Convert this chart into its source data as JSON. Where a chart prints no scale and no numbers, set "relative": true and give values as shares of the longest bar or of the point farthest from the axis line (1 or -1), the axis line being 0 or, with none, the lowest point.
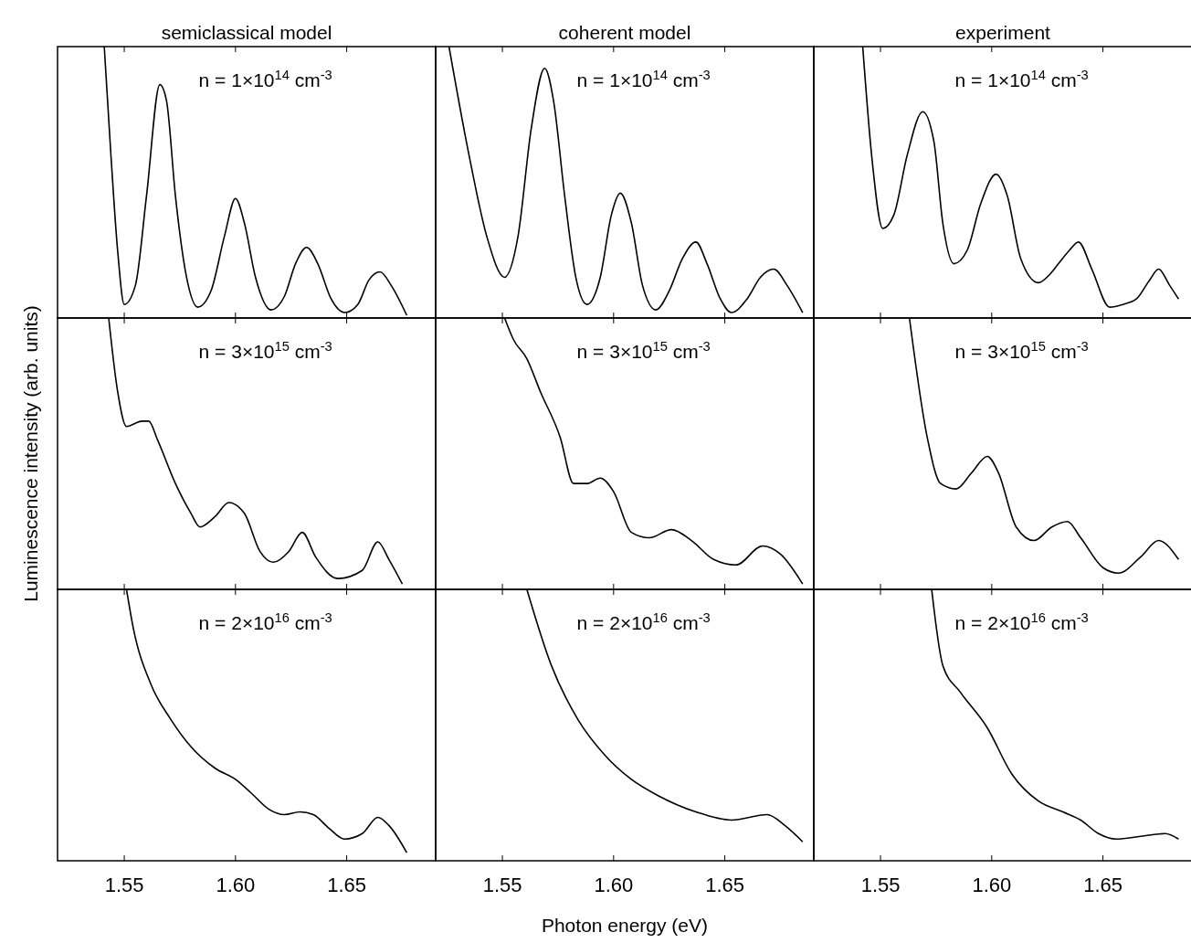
{
  "chart_data": [
    {
      "type": "line",
      "title": "semiclassical model",
      "relative": true,
      "xlim": [
        1.52,
        1.69
      ],
      "xticks": [
        {
          "value": 1.55,
          "label": null
        },
        {
          "value": 1.6,
          "label": null
        },
        {
          "value": 1.65,
          "label": null
        }
      ],
      "tick_labels": false,
      "annotations": [
        "n = 1×10$^{14}$ cm$^{-3}$"
      ],
      "series": [
        {
          "color": "#000000",
          "x": [
            1.541,
            1.544,
            1.547,
            1.55,
            1.555,
            1.56,
            1.566,
            1.569,
            1.573,
            1.578,
            1.583,
            1.589,
            1.595,
            1.6,
            1.604,
            1.609,
            1.616,
            1.622,
            1.627,
            1.632,
            1.637,
            1.643,
            1.649,
            1.655,
            1.66,
            1.665,
            1.67,
            1.677
          ],
          "values": [
            1.0,
            0.6,
            0.25,
            0.05,
            0.12,
            0.45,
            0.86,
            0.8,
            0.45,
            0.15,
            0.04,
            0.1,
            0.3,
            0.44,
            0.35,
            0.15,
            0.03,
            0.08,
            0.2,
            0.26,
            0.2,
            0.07,
            0.02,
            0.05,
            0.14,
            0.17,
            0.12,
            0.01
          ]
        }
      ]
    },
    {
      "type": "line",
      "title": "coherent model",
      "relative": true,
      "xlim": [
        1.52,
        1.69
      ],
      "xticks": [
        {
          "value": 1.55,
          "label": null
        },
        {
          "value": 1.6,
          "label": null
        },
        {
          "value": 1.65,
          "label": null
        }
      ],
      "tick_labels": false,
      "annotations": [
        "n = 1×10$^{14}$ cm$^{-3}$"
      ],
      "series": [
        {
          "color": "#000000",
          "x": [
            1.526,
            1.535,
            1.543,
            1.551,
            1.557,
            1.563,
            1.569,
            1.573,
            1.578,
            1.583,
            1.588,
            1.594,
            1.599,
            1.603,
            1.608,
            1.613,
            1.619,
            1.625,
            1.631,
            1.637,
            1.642,
            1.648,
            1.653,
            1.66,
            1.666,
            1.672,
            1.678,
            1.685
          ],
          "values": [
            1.0,
            0.6,
            0.3,
            0.15,
            0.3,
            0.7,
            0.92,
            0.8,
            0.45,
            0.15,
            0.05,
            0.15,
            0.38,
            0.46,
            0.35,
            0.12,
            0.03,
            0.1,
            0.22,
            0.28,
            0.2,
            0.07,
            0.02,
            0.07,
            0.15,
            0.18,
            0.12,
            0.02
          ]
        }
      ]
    },
    {
      "type": "line",
      "title": "experiment",
      "relative": true,
      "xlim": [
        1.52,
        1.69
      ],
      "xticks": [
        {
          "value": 1.55,
          "label": null
        },
        {
          "value": 1.6,
          "label": null
        },
        {
          "value": 1.65,
          "label": null
        }
      ],
      "tick_labels": false,
      "annotations": [
        "n = 1×10$^{14}$ cm$^{-3}$"
      ],
      "series": [
        {
          "color": "#000000",
          "x": [
            1.542,
            1.546,
            1.551,
            1.556,
            1.562,
            1.569,
            1.574,
            1.578,
            1.583,
            1.589,
            1.595,
            1.602,
            1.607,
            1.613,
            1.621,
            1.626,
            1.63,
            1.635,
            1.639,
            1.645,
            1.653,
            1.659,
            1.665,
            1.671,
            1.675,
            1.68,
            1.684
          ],
          "values": [
            1.0,
            0.6,
            0.33,
            0.38,
            0.6,
            0.76,
            0.65,
            0.35,
            0.2,
            0.25,
            0.42,
            0.53,
            0.45,
            0.22,
            0.13,
            0.16,
            0.2,
            0.25,
            0.28,
            0.18,
            0.04,
            0.05,
            0.07,
            0.14,
            0.18,
            0.12,
            0.07
          ]
        }
      ]
    },
    {
      "type": "line",
      "ylabel": "Luminescence intensity (arb. units)",
      "relative": true,
      "xlim": [
        1.52,
        1.69
      ],
      "xticks": [
        {
          "value": 1.55,
          "label": null
        },
        {
          "value": 1.6,
          "label": null
        },
        {
          "value": 1.65,
          "label": null
        }
      ],
      "tick_labels": false,
      "annotations": [
        "n = 3×10$^{15}$ cm$^{-3}$"
      ],
      "series": [
        {
          "color": "#000000",
          "x": [
            1.543,
            1.547,
            1.551,
            1.558,
            1.561,
            1.565,
            1.573,
            1.58,
            1.584,
            1.591,
            1.597,
            1.604,
            1.611,
            1.617,
            1.624,
            1.63,
            1.636,
            1.646,
            1.657,
            1.664,
            1.669,
            1.675
          ],
          "values": [
            1.0,
            0.73,
            0.6,
            0.62,
            0.62,
            0.55,
            0.39,
            0.28,
            0.23,
            0.27,
            0.32,
            0.28,
            0.14,
            0.1,
            0.14,
            0.21,
            0.12,
            0.04,
            0.07,
            0.175,
            0.11,
            0.02
          ]
        }
      ]
    },
    {
      "type": "line",
      "relative": true,
      "xlim": [
        1.52,
        1.69
      ],
      "xticks": [
        {
          "value": 1.55,
          "label": null
        },
        {
          "value": 1.6,
          "label": null
        },
        {
          "value": 1.65,
          "label": null
        }
      ],
      "tick_labels": false,
      "annotations": [
        "n = 3×10$^{15}$ cm$^{-3}$"
      ],
      "series": [
        {
          "color": "#000000",
          "x": [
            1.551,
            1.555,
            1.561,
            1.567,
            1.576,
            1.582,
            1.588,
            1.594,
            1.6,
            1.608,
            1.616,
            1.626,
            1.635,
            1.645,
            1.655,
            1.667,
            1.675,
            1.685
          ],
          "values": [
            1.0,
            0.92,
            0.85,
            0.73,
            0.56,
            0.39,
            0.39,
            0.41,
            0.36,
            0.21,
            0.19,
            0.22,
            0.18,
            0.11,
            0.09,
            0.16,
            0.13,
            0.02
          ]
        }
      ]
    },
    {
      "type": "line",
      "relative": true,
      "xlim": [
        1.52,
        1.69
      ],
      "xticks": [
        {
          "value": 1.55,
          "label": null
        },
        {
          "value": 1.6,
          "label": null
        },
        {
          "value": 1.65,
          "label": null
        }
      ],
      "tick_labels": false,
      "annotations": [
        "n = 3×10$^{15}$ cm$^{-3}$"
      ],
      "series": [
        {
          "color": "#000000",
          "x": [
            1.563,
            1.571,
            1.577,
            1.584,
            1.591,
            1.598,
            1.603,
            1.611,
            1.619,
            1.627,
            1.634,
            1.64,
            1.65,
            1.657,
            1.667,
            1.675,
            1.684
          ],
          "values": [
            1.0,
            0.56,
            0.39,
            0.37,
            0.43,
            0.49,
            0.43,
            0.23,
            0.18,
            0.23,
            0.25,
            0.19,
            0.08,
            0.06,
            0.12,
            0.18,
            0.11
          ]
        }
      ]
    },
    {
      "type": "line",
      "relative": true,
      "xlim": [
        1.52,
        1.69
      ],
      "xticks": [
        {
          "value": 1.55,
          "label": "1.55"
        },
        {
          "value": 1.6,
          "label": "1.60"
        },
        {
          "value": 1.65,
          "label": "1.65"
        }
      ],
      "tick_labels": "x",
      "annotations": [
        "n = 2×10$^{16}$ cm$^{-3}$"
      ],
      "series": [
        {
          "color": "#000000",
          "x": [
            1.551,
            1.554,
            1.562,
            1.571,
            1.58,
            1.591,
            1.6,
            1.607,
            1.615,
            1.622,
            1.629,
            1.635,
            1.642,
            1.649,
            1.657,
            1.664,
            1.669,
            1.677
          ],
          "values": [
            1.0,
            0.86,
            0.65,
            0.52,
            0.42,
            0.34,
            0.3,
            0.25,
            0.19,
            0.17,
            0.18,
            0.17,
            0.12,
            0.08,
            0.1,
            0.16,
            0.13,
            0.03
          ]
        }
      ]
    },
    {
      "type": "line",
      "xlabel": "Photon energy (eV)",
      "relative": true,
      "xlim": [
        1.52,
        1.69
      ],
      "xticks": [
        {
          "value": 1.55,
          "label": "1.55"
        },
        {
          "value": 1.6,
          "label": "1.60"
        },
        {
          "value": 1.65,
          "label": "1.65"
        }
      ],
      "tick_labels": "x",
      "annotations": [
        "n = 2×10$^{16}$ cm$^{-3}$"
      ],
      "series": [
        {
          "color": "#000000",
          "x": [
            1.561,
            1.572,
            1.584,
            1.596,
            1.608,
            1.62,
            1.637,
            1.653,
            1.669,
            1.677,
            1.685
          ],
          "values": [
            1.0,
            0.72,
            0.52,
            0.39,
            0.3,
            0.24,
            0.18,
            0.15,
            0.17,
            0.13,
            0.07
          ]
        }
      ]
    },
    {
      "type": "line",
      "relative": true,
      "xlim": [
        1.52,
        1.69
      ],
      "xticks": [
        {
          "value": 1.55,
          "label": "1.55"
        },
        {
          "value": 1.6,
          "label": "1.60"
        },
        {
          "value": 1.65,
          "label": "1.65"
        }
      ],
      "tick_labels": "x",
      "annotations": [
        "n = 2×10$^{16}$ cm$^{-3}$"
      ],
      "series": [
        {
          "color": "#000000",
          "x": [
            1.573,
            1.578,
            1.586,
            1.598,
            1.609,
            1.621,
            1.632,
            1.64,
            1.648,
            1.656,
            1.667,
            1.678,
            1.684
          ],
          "values": [
            1.0,
            0.72,
            0.62,
            0.49,
            0.32,
            0.22,
            0.18,
            0.15,
            0.1,
            0.08,
            0.09,
            0.1,
            0.08
          ]
        }
      ]
    }
  ]
}
